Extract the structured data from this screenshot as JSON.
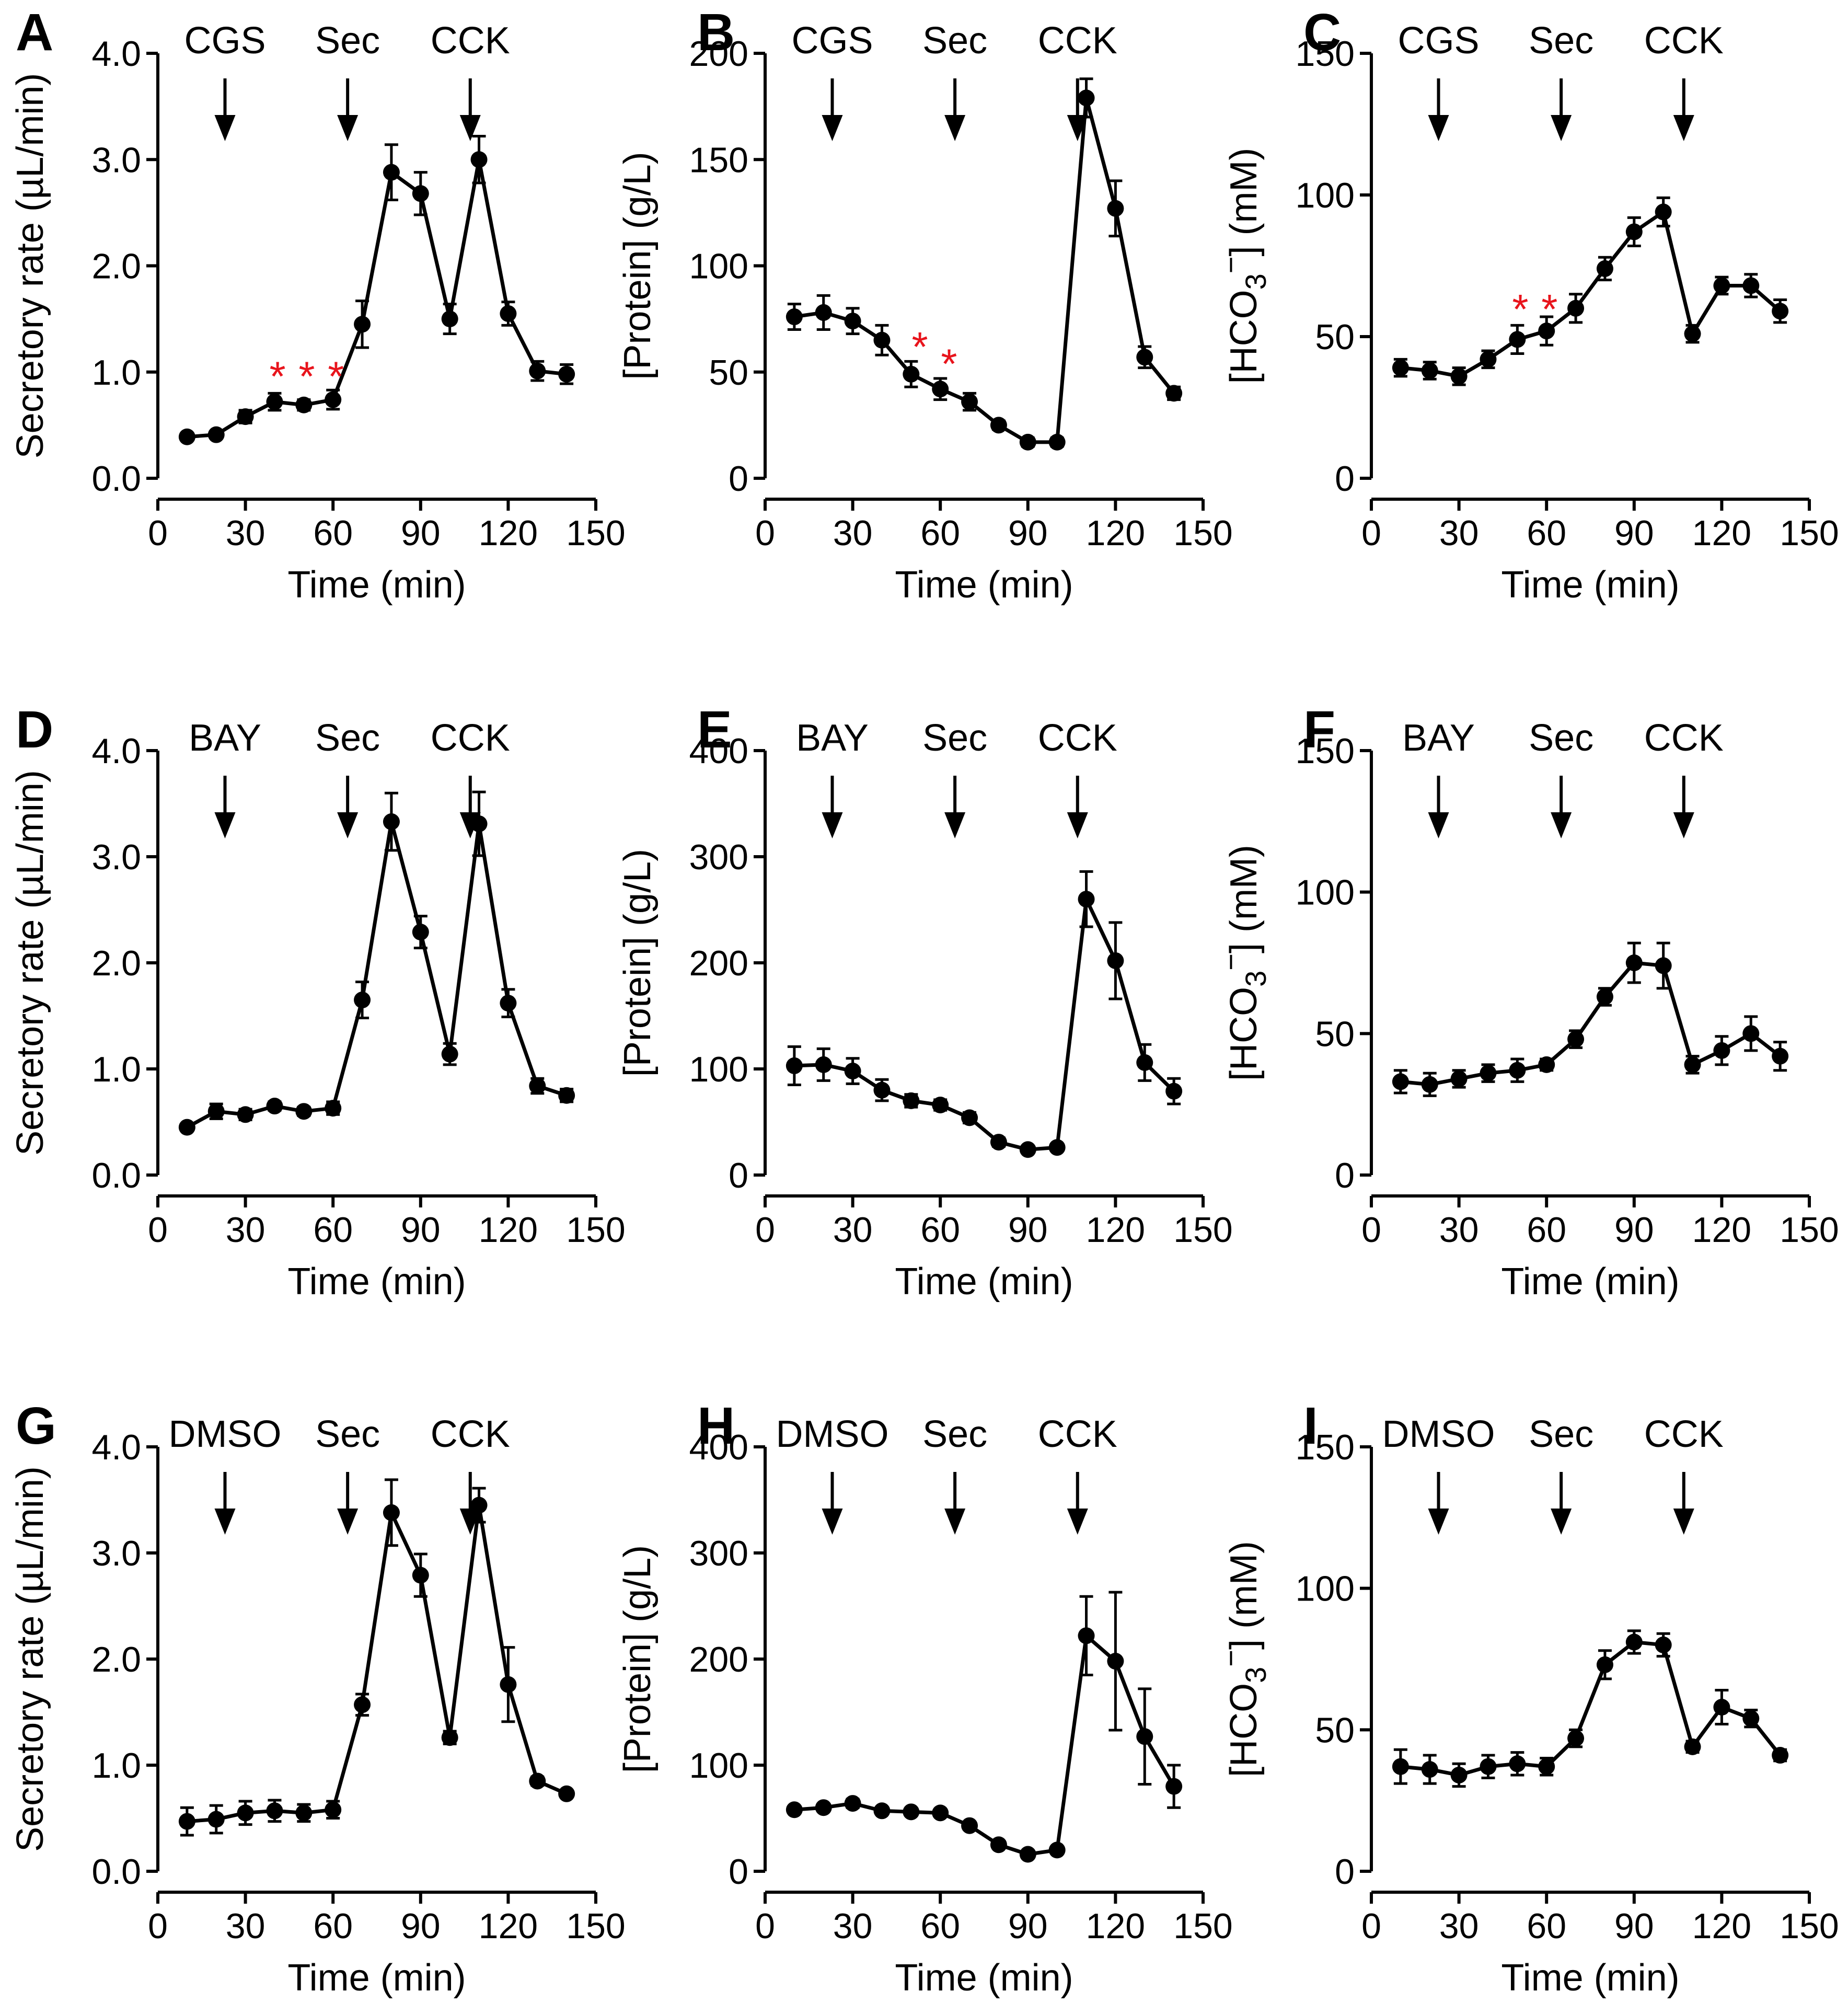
{
  "figure": {
    "x_axis_label": "Time (min)",
    "x_ticks": [
      0,
      30,
      60,
      90,
      120,
      150
    ],
    "x_range": [
      0,
      150
    ]
  },
  "chart_data": [
    {
      "panel": "A",
      "type": "line",
      "ylabel": "Secretory rate (µL/min)",
      "ylim": [
        0,
        4
      ],
      "yticks": [
        0,
        1,
        2,
        3,
        4
      ],
      "ytick_labels": [
        "0.0",
        "1.0",
        "2.0",
        "3.0",
        "4.0"
      ],
      "markers": [
        {
          "label": "CGS",
          "x": 23
        },
        {
          "label": "Sec",
          "x": 65
        },
        {
          "label": "CCK",
          "x": 107
        }
      ],
      "stars": [
        {
          "text": "*",
          "x": 41,
          "y": 1.02
        },
        {
          "text": "*",
          "x": 51,
          "y": 1.02
        },
        {
          "text": "*",
          "x": 61,
          "y": 1.02
        }
      ],
      "x": [
        10,
        20,
        30,
        40,
        50,
        60,
        70,
        80,
        90,
        100,
        110,
        120,
        130,
        140
      ],
      "y": [
        0.39,
        0.41,
        0.58,
        0.72,
        0.69,
        0.74,
        1.45,
        2.88,
        2.68,
        1.5,
        3.0,
        1.55,
        1.01,
        0.98
      ],
      "err": [
        0.02,
        0.03,
        0.06,
        0.08,
        0.05,
        0.09,
        0.22,
        0.26,
        0.2,
        0.14,
        0.22,
        0.11,
        0.09,
        0.09
      ]
    },
    {
      "panel": "B",
      "type": "line",
      "ylabel": "[Protein] (g/L)",
      "ylim": [
        0,
        200
      ],
      "yticks": [
        0,
        50,
        100,
        150,
        200
      ],
      "ytick_labels": [
        "0",
        "50",
        "100",
        "150",
        "200"
      ],
      "markers": [
        {
          "label": "CGS",
          "x": 23
        },
        {
          "label": "Sec",
          "x": 65
        },
        {
          "label": "CCK",
          "x": 107
        }
      ],
      "stars": [
        {
          "text": "*",
          "x": 53,
          "y": 65
        },
        {
          "text": "*",
          "x": 63,
          "y": 57
        }
      ],
      "x": [
        10,
        20,
        30,
        40,
        50,
        60,
        70,
        80,
        90,
        100,
        110,
        120,
        130,
        140
      ],
      "y": [
        76,
        78,
        74,
        65,
        49,
        42,
        36,
        25,
        17,
        17,
        179,
        127,
        57,
        40
      ],
      "err": [
        6,
        8,
        6,
        7,
        6,
        5,
        4,
        2,
        2,
        2,
        9,
        13,
        5,
        3
      ]
    },
    {
      "panel": "C",
      "type": "line",
      "ylabel": "[HCO3−] (mM)",
      "ylim": [
        0,
        150
      ],
      "yticks": [
        0,
        50,
        100,
        150
      ],
      "ytick_labels": [
        "0",
        "50",
        "100",
        "150"
      ],
      "markers": [
        {
          "label": "CGS",
          "x": 23
        },
        {
          "label": "Sec",
          "x": 65
        },
        {
          "label": "CCK",
          "x": 107
        }
      ],
      "stars": [
        {
          "text": "*",
          "x": 51,
          "y": 62
        },
        {
          "text": "*",
          "x": 61,
          "y": 62
        }
      ],
      "x": [
        10,
        20,
        30,
        40,
        50,
        60,
        70,
        80,
        90,
        100,
        110,
        120,
        130,
        140
      ],
      "y": [
        39,
        38,
        36,
        42,
        49,
        52,
        60,
        74,
        87,
        94,
        51,
        68,
        68,
        59
      ],
      "err": [
        3,
        3,
        3,
        3,
        5,
        5,
        5,
        4,
        5,
        5,
        3,
        3,
        4,
        4
      ]
    },
    {
      "panel": "D",
      "type": "line",
      "ylabel": "Secretory rate (µL/min)",
      "ylim": [
        0,
        4
      ],
      "yticks": [
        0,
        1,
        2,
        3,
        4
      ],
      "ytick_labels": [
        "0.0",
        "1.0",
        "2.0",
        "3.0",
        "4.0"
      ],
      "markers": [
        {
          "label": "BAY",
          "x": 23
        },
        {
          "label": "Sec",
          "x": 65
        },
        {
          "label": "CCK",
          "x": 107
        }
      ],
      "stars": [],
      "x": [
        10,
        20,
        30,
        40,
        50,
        60,
        70,
        80,
        90,
        100,
        110,
        120,
        130,
        140
      ],
      "y": [
        0.45,
        0.6,
        0.57,
        0.65,
        0.6,
        0.63,
        1.65,
        3.33,
        2.29,
        1.14,
        3.31,
        1.62,
        0.84,
        0.75
      ],
      "err": [
        0.03,
        0.07,
        0.05,
        0.04,
        0.04,
        0.06,
        0.17,
        0.27,
        0.15,
        0.1,
        0.3,
        0.13,
        0.07,
        0.06
      ]
    },
    {
      "panel": "E",
      "type": "line",
      "ylabel": "[Protein] (g/L)",
      "ylim": [
        0,
        400
      ],
      "yticks": [
        0,
        100,
        200,
        300,
        400
      ],
      "ytick_labels": [
        "0",
        "100",
        "200",
        "300",
        "400"
      ],
      "markers": [
        {
          "label": "BAY",
          "x": 23
        },
        {
          "label": "Sec",
          "x": 65
        },
        {
          "label": "CCK",
          "x": 107
        }
      ],
      "stars": [],
      "x": [
        10,
        20,
        30,
        40,
        50,
        60,
        70,
        80,
        90,
        100,
        110,
        120,
        130,
        140
      ],
      "y": [
        103,
        104,
        98,
        80,
        70,
        66,
        54,
        31,
        24,
        26,
        260,
        202,
        106,
        79
      ],
      "err": [
        18,
        15,
        12,
        10,
        6,
        5,
        5,
        4,
        3,
        3,
        26,
        36,
        17,
        12
      ]
    },
    {
      "panel": "F",
      "type": "line",
      "ylabel": "[HCO3−] (mM)",
      "ylim": [
        0,
        150
      ],
      "yticks": [
        0,
        50,
        100,
        150
      ],
      "ytick_labels": [
        "0",
        "50",
        "100",
        "150"
      ],
      "markers": [
        {
          "label": "BAY",
          "x": 23
        },
        {
          "label": "Sec",
          "x": 65
        },
        {
          "label": "CCK",
          "x": 107
        }
      ],
      "stars": [],
      "x": [
        10,
        20,
        30,
        40,
        50,
        60,
        70,
        80,
        90,
        100,
        110,
        120,
        130,
        140
      ],
      "y": [
        33,
        32,
        34,
        36,
        37,
        39,
        48,
        63,
        75,
        74,
        39,
        44,
        50,
        42
      ],
      "err": [
        4,
        4,
        3,
        3,
        4,
        2,
        3,
        3,
        7,
        8,
        3,
        5,
        6,
        5
      ]
    },
    {
      "panel": "G",
      "type": "line",
      "ylabel": "Secretory rate (µL/min)",
      "ylim": [
        0,
        4
      ],
      "yticks": [
        0,
        1,
        2,
        3,
        4
      ],
      "ytick_labels": [
        "0.0",
        "1.0",
        "2.0",
        "3.0",
        "4.0"
      ],
      "markers": [
        {
          "label": "DMSO",
          "x": 23
        },
        {
          "label": "Sec",
          "x": 65
        },
        {
          "label": "CCK",
          "x": 107
        }
      ],
      "stars": [],
      "x": [
        10,
        20,
        30,
        40,
        50,
        60,
        70,
        80,
        90,
        100,
        110,
        120,
        130,
        140
      ],
      "y": [
        0.47,
        0.49,
        0.55,
        0.57,
        0.55,
        0.58,
        1.57,
        3.38,
        2.79,
        1.26,
        3.45,
        1.76,
        0.85,
        0.73
      ],
      "err": [
        0.13,
        0.13,
        0.11,
        0.1,
        0.08,
        0.08,
        0.1,
        0.31,
        0.2,
        0.06,
        0.16,
        0.35,
        0.04,
        0.03
      ]
    },
    {
      "panel": "H",
      "type": "line",
      "ylabel": "[Protein] (g/L)",
      "ylim": [
        0,
        400
      ],
      "yticks": [
        0,
        100,
        200,
        300,
        400
      ],
      "ytick_labels": [
        "0",
        "100",
        "200",
        "300",
        "400"
      ],
      "markers": [
        {
          "label": "DMSO",
          "x": 23
        },
        {
          "label": "Sec",
          "x": 65
        },
        {
          "label": "CCK",
          "x": 107
        }
      ],
      "stars": [],
      "x": [
        10,
        20,
        30,
        40,
        50,
        60,
        70,
        80,
        90,
        100,
        110,
        120,
        130,
        140
      ],
      "y": [
        58,
        60,
        64,
        57,
        56,
        55,
        43,
        25,
        16,
        20,
        222,
        198,
        127,
        80
      ],
      "err": [
        3,
        3,
        4,
        3,
        3,
        3,
        3,
        2,
        2,
        2,
        37,
        65,
        45,
        20
      ]
    },
    {
      "panel": "I",
      "type": "line",
      "ylabel": "[HCO3−] (mM)",
      "ylim": [
        0,
        150
      ],
      "yticks": [
        0,
        50,
        100,
        150
      ],
      "ytick_labels": [
        "0",
        "50",
        "100",
        "150"
      ],
      "markers": [
        {
          "label": "DMSO",
          "x": 23
        },
        {
          "label": "Sec",
          "x": 65
        },
        {
          "label": "CCK",
          "x": 107
        }
      ],
      "stars": [],
      "x": [
        10,
        20,
        30,
        40,
        50,
        60,
        70,
        80,
        90,
        100,
        110,
        120,
        130,
        140
      ],
      "y": [
        37,
        36,
        34,
        37,
        38,
        37,
        47,
        73,
        81,
        80,
        44,
        58,
        54,
        41
      ],
      "err": [
        6,
        5,
        4,
        4,
        4,
        3,
        3,
        5,
        4,
        4,
        2,
        6,
        3,
        2
      ]
    }
  ]
}
